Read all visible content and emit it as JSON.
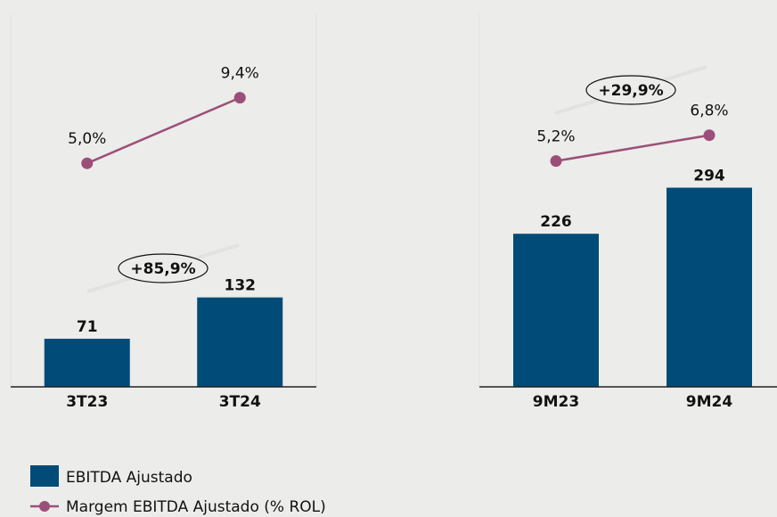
{
  "chart_data": [
    {
      "type": "bar",
      "categories": [
        "3T23",
        "3T24"
      ],
      "series": [
        {
          "name": "EBITDA Ajustado",
          "color": "#004b78",
          "values": [
            71,
            132
          ]
        },
        {
          "name": "Margem EBITDA Ajustado (% ROL)",
          "color": "#9b4f78",
          "axis": "y2",
          "values": [
            5.0,
            9.4
          ],
          "value_labels": [
            "5,0%",
            "9,4%"
          ]
        }
      ],
      "annotation": "+85,9%",
      "ylim": [
        0,
        550
      ],
      "y2lim": [
        -10,
        15
      ]
    },
    {
      "type": "bar",
      "categories": [
        "9M23",
        "9M24"
      ],
      "series": [
        {
          "color": "#004b78",
          "values": [
            226,
            294
          ]
        },
        {
          "color": "#9b4f78",
          "axis": "y2",
          "values": [
            5.2,
            6.8
          ],
          "value_labels": [
            "5,2%",
            "6,8%"
          ]
        }
      ],
      "annotation": "+29,9%",
      "ylim": [
        0,
        550
      ],
      "y2lim": [
        -8.8,
        14.3
      ]
    }
  ]
}
